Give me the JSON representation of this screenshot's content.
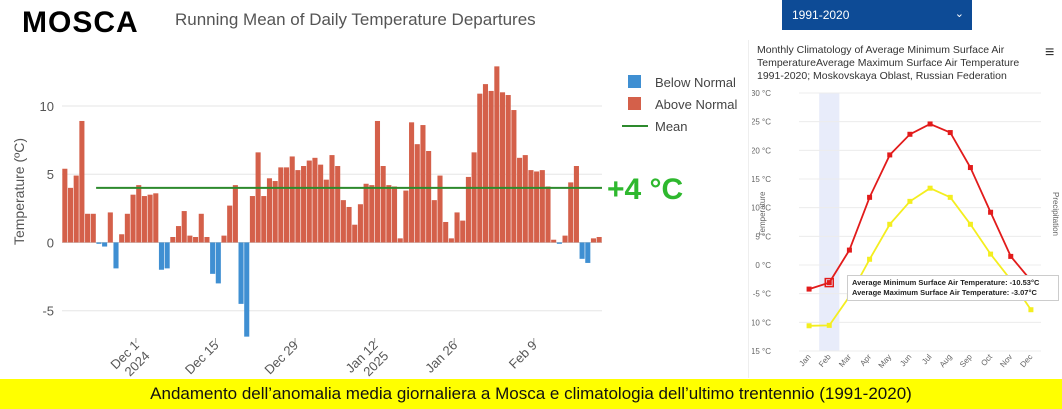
{
  "header": {
    "city": "MOSCA"
  },
  "dropdown": {
    "selected": "1991-2020"
  },
  "caption": "Andamento dell’anomalia media giornaliera a Mosca e climatologia dell’ultimo trentennio (1991-2020)",
  "chart_data": [
    {
      "type": "bar",
      "title": "Running Mean of Daily Temperature Departures",
      "ylabel": "Temperature (ºC)",
      "ylim": [
        -7,
        13
      ],
      "yticks": [
        10,
        5,
        0,
        -5
      ],
      "xtick_labels": [
        {
          "label": "Dec 1\n2024",
          "index": 13
        },
        {
          "label": "Dec 15",
          "index": 27
        },
        {
          "label": "Dec 29",
          "index": 41
        },
        {
          "label": "Jan 12\n2025",
          "index": 55
        },
        {
          "label": "Jan 26",
          "index": 69
        },
        {
          "label": "Feb 9",
          "index": 83
        }
      ],
      "legend": [
        "Below Normal",
        "Above Normal",
        "Mean"
      ],
      "legend_position": "top-right",
      "colors": {
        "below": "#3f8fd2",
        "above": "#d4604a",
        "mean": "#2d8a2d"
      },
      "mean_value": 4.0,
      "mean_annotation": "+4 °C",
      "values": [
        5.4,
        4.0,
        4.9,
        8.9,
        2.1,
        2.1,
        -0.1,
        -0.3,
        2.2,
        -1.9,
        0.6,
        2.1,
        3.5,
        4.2,
        3.4,
        3.5,
        3.6,
        -2.0,
        -1.9,
        0.4,
        1.2,
        2.3,
        0.5,
        0.4,
        2.1,
        0.4,
        -2.3,
        -3.0,
        0.5,
        2.7,
        4.2,
        -4.5,
        -6.9,
        3.4,
        6.6,
        3.4,
        4.7,
        4.5,
        5.5,
        5.5,
        6.3,
        5.3,
        5.6,
        6.0,
        6.2,
        5.7,
        4.6,
        6.4,
        5.6,
        3.1,
        2.6,
        1.3,
        2.8,
        4.3,
        4.2,
        8.9,
        5.6,
        4.2,
        4.1,
        0.3,
        3.8,
        8.8,
        7.2,
        8.6,
        6.7,
        3.1,
        4.9,
        1.5,
        0.3,
        2.2,
        1.6,
        4.8,
        6.6,
        10.9,
        11.6,
        11.1,
        12.9,
        11.0,
        10.8,
        9.7,
        6.2,
        6.4,
        5.3,
        5.2,
        5.3,
        4.1,
        0.2,
        -0.1,
        0.5,
        4.4,
        5.6,
        -1.2,
        -1.5,
        0.3,
        0.4
      ]
    },
    {
      "type": "line",
      "title": "Monthly Climatology of Average Minimum Surface Air TemperatureAverage Maximum Surface Air Temperature 1991-2020; Moskovskaya Oblast, Russian Federation",
      "categories": [
        "Jan",
        "Feb",
        "Mar",
        "Apr",
        "May",
        "Jun",
        "Jul",
        "Aug",
        "Sep",
        "Oct",
        "Nov",
        "Dec"
      ],
      "ylabel": "Temperature",
      "y2label": "Precipitation",
      "ylim": [
        -15,
        30
      ],
      "yticks": [
        "30 °C",
        "25 °C",
        "20 °C",
        "15 °C",
        "10 °C",
        "5 °C",
        "0 °C",
        "-5 °C",
        "-10 °C",
        "-15 °C"
      ],
      "series": [
        {
          "name": "Average Maximum Surface Air Temperature",
          "color": "#e21b1b",
          "values": [
            -4.2,
            -3.07,
            2.6,
            11.8,
            19.2,
            22.8,
            24.6,
            23.1,
            17.0,
            9.2,
            1.5,
            -2.7
          ]
        },
        {
          "name": "Average Minimum Surface Air Temperature",
          "color": "#f4ee1f",
          "values": [
            -10.6,
            -10.53,
            -5.5,
            1.0,
            7.1,
            11.1,
            13.4,
            11.8,
            7.1,
            1.9,
            -2.6,
            -7.8
          ]
        }
      ],
      "tooltip": {
        "line1": "Average Minimum Surface Air Temperature: -10.53°C",
        "line2": "Average Maximum Surface Air Temperature: -3.07°C"
      }
    }
  ]
}
